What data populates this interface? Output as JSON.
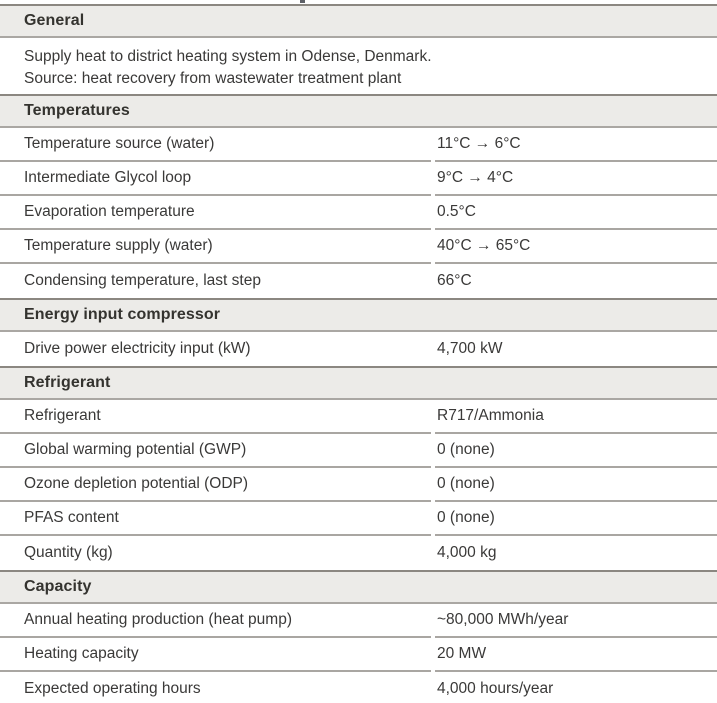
{
  "colors": {
    "section_header_bg": "#ecebe8",
    "section_header_top_border": "#8b8781",
    "row_divider": "#a9a6a2",
    "text": "#3a3938"
  },
  "table": {
    "sections": [
      {
        "title": "General",
        "description": [
          "Supply heat to district heating system in Odense, Denmark.",
          "Source: heat recovery from wastewater treatment plant"
        ]
      },
      {
        "title": "Temperatures",
        "rows": [
          {
            "label": "Temperature source (water)",
            "value": "11°C → 6°C"
          },
          {
            "label": "Intermediate Glycol loop",
            "value": "9°C → 4°C"
          },
          {
            "label": "Evaporation temperature",
            "value": "0.5°C"
          },
          {
            "label": "Temperature supply (water)",
            "value": "40°C → 65°C"
          },
          {
            "label": "Condensing temperature, last step",
            "value": "66°C"
          }
        ]
      },
      {
        "title": "Energy input compressor",
        "rows": [
          {
            "label": "Drive power electricity input (kW)",
            "value": "4,700 kW"
          }
        ]
      },
      {
        "title": "Refrigerant",
        "rows": [
          {
            "label": "Refrigerant",
            "value": "R717/Ammonia"
          },
          {
            "label": "Global warming potential (GWP)",
            "value": "0 (none)"
          },
          {
            "label": "Ozone depletion potential (ODP)",
            "value": "0 (none)"
          },
          {
            "label": "PFAS content",
            "value": "0 (none)"
          },
          {
            "label": "Quantity (kg)",
            "value": "4,000 kg"
          }
        ]
      },
      {
        "title": "Capacity",
        "rows": [
          {
            "label": "Annual heating production (heat pump)",
            "value": "~80,000 MWh/year"
          },
          {
            "label": "Heating capacity",
            "value": "20 MW"
          },
          {
            "label": "Expected operating hours",
            "value": "4,000 hours/year"
          }
        ]
      }
    ]
  }
}
